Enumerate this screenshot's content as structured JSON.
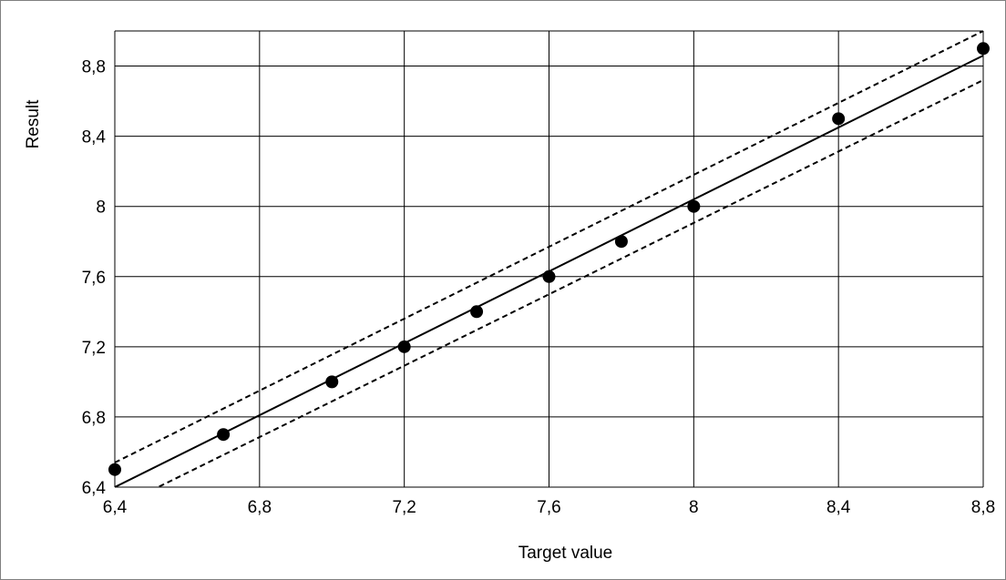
{
  "chart_data": {
    "type": "scatter",
    "title": "",
    "xlabel": "Target value",
    "ylabel": "Result",
    "xlim": [
      6.4,
      8.8
    ],
    "ylim": [
      6.4,
      9.0
    ],
    "x_ticks": [
      6.4,
      6.8,
      7.2,
      7.6,
      8.0,
      8.4,
      8.8
    ],
    "x_tick_labels": [
      "6,4",
      "6,8",
      "7,2",
      "7,6",
      "8",
      "8,4",
      "8,8"
    ],
    "y_ticks": [
      6.4,
      6.8,
      7.2,
      7.6,
      8.0,
      8.4,
      8.8
    ],
    "y_tick_labels": [
      "6,4",
      "6,8",
      "7,2",
      "7,6",
      "8",
      "8,4",
      "8,8"
    ],
    "grid": true,
    "legend": "none",
    "series": [
      {
        "kind": "points",
        "x": [
          6.4,
          6.7,
          7.0,
          7.2,
          7.4,
          7.6,
          7.8,
          8.0,
          8.4,
          8.8
        ],
        "y": [
          6.5,
          6.7,
          7.0,
          7.2,
          7.4,
          7.6,
          7.8,
          8.0,
          8.5,
          8.9
        ]
      },
      {
        "kind": "line",
        "style": "solid",
        "x": [
          6.4,
          8.8
        ],
        "y": [
          6.4,
          8.86
        ]
      },
      {
        "kind": "line",
        "style": "dashed",
        "x": [
          6.4,
          8.8
        ],
        "y": [
          6.54,
          9.0
        ]
      },
      {
        "kind": "line",
        "style": "dashed",
        "x": [
          6.5,
          8.8
        ],
        "y": [
          6.38,
          8.72
        ]
      }
    ],
    "colors": {
      "marker": "#000000",
      "line": "#000000",
      "grid": "#000000",
      "frame": "#7f7f7f"
    }
  }
}
